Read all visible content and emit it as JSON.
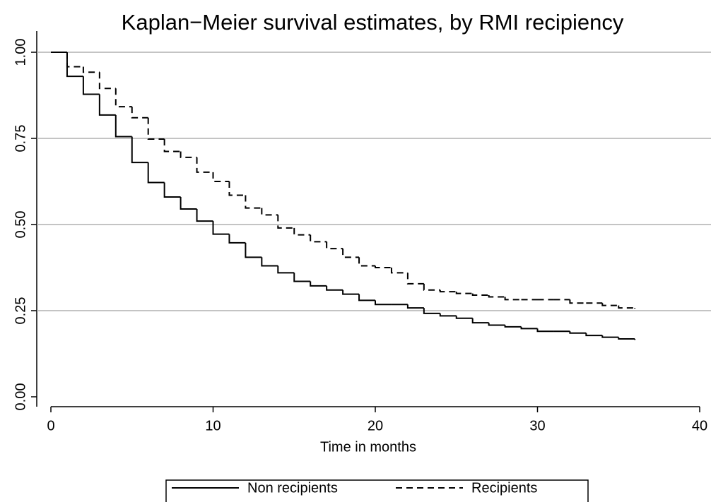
{
  "chart_data": {
    "type": "step",
    "title": "Kaplan−Meier survival estimates, by RMI recipiency",
    "x_label": "Time in months",
    "x": [
      0,
      1,
      2,
      3,
      4,
      5,
      6,
      7,
      8,
      9,
      10,
      11,
      12,
      13,
      14,
      15,
      16,
      17,
      18,
      19,
      20,
      21,
      22,
      23,
      24,
      25,
      26,
      27,
      28,
      29,
      30,
      31,
      32,
      33,
      34,
      35,
      36
    ],
    "series": [
      {
        "name": "Non recipients",
        "color": "#000000",
        "line_style": "solid",
        "values": [
          1.0,
          0.93,
          0.878,
          0.818,
          0.755,
          0.68,
          0.622,
          0.58,
          0.545,
          0.51,
          0.472,
          0.447,
          0.405,
          0.38,
          0.36,
          0.335,
          0.322,
          0.31,
          0.298,
          0.28,
          0.268,
          0.268,
          0.258,
          0.242,
          0.235,
          0.228,
          0.215,
          0.208,
          0.203,
          0.198,
          0.19,
          0.19,
          0.185,
          0.178,
          0.173,
          0.168,
          0.165
        ]
      },
      {
        "name": "Recipients",
        "color": "#000000",
        "line_style": "dashed",
        "values": [
          1.0,
          0.958,
          0.942,
          0.895,
          0.842,
          0.81,
          0.748,
          0.712,
          0.695,
          0.652,
          0.625,
          0.585,
          0.548,
          0.528,
          0.49,
          0.47,
          0.45,
          0.43,
          0.405,
          0.38,
          0.375,
          0.36,
          0.328,
          0.31,
          0.305,
          0.3,
          0.295,
          0.29,
          0.282,
          0.282,
          0.282,
          0.282,
          0.272,
          0.272,
          0.265,
          0.258,
          0.256
        ]
      }
    ],
    "xlim": [
      0,
      40
    ],
    "xticks": [
      0,
      10,
      20,
      30,
      40
    ],
    "ylim": [
      0,
      1
    ],
    "yticks": [
      {
        "value": 0,
        "label": "0.00"
      },
      0.25,
      {
        "value": 0.5,
        "label": "0.50"
      },
      0.75,
      {
        "value": 1,
        "label": "1.00"
      }
    ],
    "grid": true,
    "legend": "bottom"
  }
}
